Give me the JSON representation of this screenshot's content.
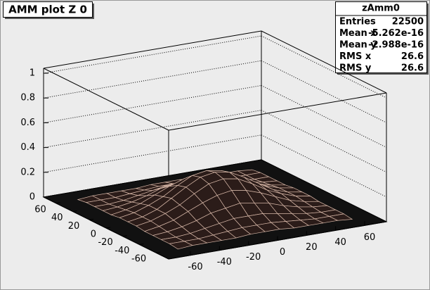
{
  "chart_data": {
    "type": "surface",
    "title": "AMM plot Z 0",
    "stats": {
      "name": "zAmm0",
      "rows": [
        {
          "label": "Entries",
          "value": 22500
        },
        {
          "label": "Mean x",
          "value": -5.262e-16
        },
        {
          "label": "Mean y",
          "value": -2.988e-16
        },
        {
          "label": "RMS x",
          "value": 26.6
        },
        {
          "label": "RMS y",
          "value": 26.6
        }
      ]
    },
    "xlim": [
      -75,
      75
    ],
    "ylim": [
      -75,
      75
    ],
    "zlim": [
      0,
      1.04
    ],
    "xticks": [
      -60,
      -40,
      -20,
      0,
      20,
      40,
      60
    ],
    "yticks": [
      -60,
      -40,
      -20,
      0,
      20,
      40,
      60
    ],
    "zticks": [
      0,
      0.2,
      0.4,
      0.6,
      0.8,
      1
    ],
    "grid": true,
    "color": "#2b1c19",
    "mesh_color": "#d8b8a8",
    "x": [
      -60,
      -50,
      -40,
      -30,
      -20,
      -10,
      0,
      10,
      20,
      30,
      40,
      50,
      60
    ],
    "y": [
      -60,
      -50,
      -40,
      -30,
      -20,
      -10,
      0,
      10,
      20,
      30,
      40,
      50,
      60
    ],
    "z": [
      [
        0,
        0.01,
        0.01,
        0.01,
        0.01,
        0.02,
        0.02,
        0.02,
        0.01,
        0.01,
        0.01,
        0.01,
        0
      ],
      [
        0.01,
        0.01,
        0.01,
        0.02,
        0.03,
        0.04,
        0.04,
        0.04,
        0.03,
        0.02,
        0.01,
        0.01,
        0.01
      ],
      [
        0.01,
        0.01,
        0.02,
        0.04,
        0.06,
        0.08,
        0.08,
        0.08,
        0.06,
        0.04,
        0.02,
        0.01,
        0.01
      ],
      [
        0.01,
        0.02,
        0.04,
        0.07,
        0.11,
        0.13,
        0.15,
        0.13,
        0.11,
        0.07,
        0.04,
        0.02,
        0.01
      ],
      [
        0.01,
        0.03,
        0.06,
        0.11,
        0.16,
        0.2,
        0.22,
        0.2,
        0.16,
        0.11,
        0.06,
        0.03,
        0.01
      ],
      [
        0.02,
        0.04,
        0.08,
        0.13,
        0.2,
        0.26,
        0.28,
        0.26,
        0.2,
        0.13,
        0.08,
        0.04,
        0.02
      ],
      [
        0.02,
        0.04,
        0.08,
        0.15,
        0.22,
        0.28,
        0.3,
        0.28,
        0.22,
        0.15,
        0.08,
        0.04,
        0.02
      ],
      [
        0.02,
        0.04,
        0.08,
        0.13,
        0.2,
        0.26,
        0.28,
        0.26,
        0.2,
        0.13,
        0.08,
        0.04,
        0.02
      ],
      [
        0.01,
        0.03,
        0.06,
        0.11,
        0.16,
        0.2,
        0.22,
        0.2,
        0.16,
        0.11,
        0.06,
        0.03,
        0.01
      ],
      [
        0.01,
        0.02,
        0.04,
        0.07,
        0.11,
        0.13,
        0.15,
        0.13,
        0.11,
        0.07,
        0.04,
        0.02,
        0.01
      ],
      [
        0.01,
        0.01,
        0.02,
        0.04,
        0.06,
        0.08,
        0.08,
        0.08,
        0.06,
        0.04,
        0.02,
        0.01,
        0.01
      ],
      [
        0.01,
        0.01,
        0.01,
        0.02,
        0.03,
        0.04,
        0.04,
        0.04,
        0.03,
        0.02,
        0.01,
        0.01,
        0.01
      ],
      [
        0,
        0.01,
        0.01,
        0.01,
        0.01,
        0.02,
        0.02,
        0.02,
        0.01,
        0.01,
        0.01,
        0.01,
        0
      ]
    ]
  }
}
